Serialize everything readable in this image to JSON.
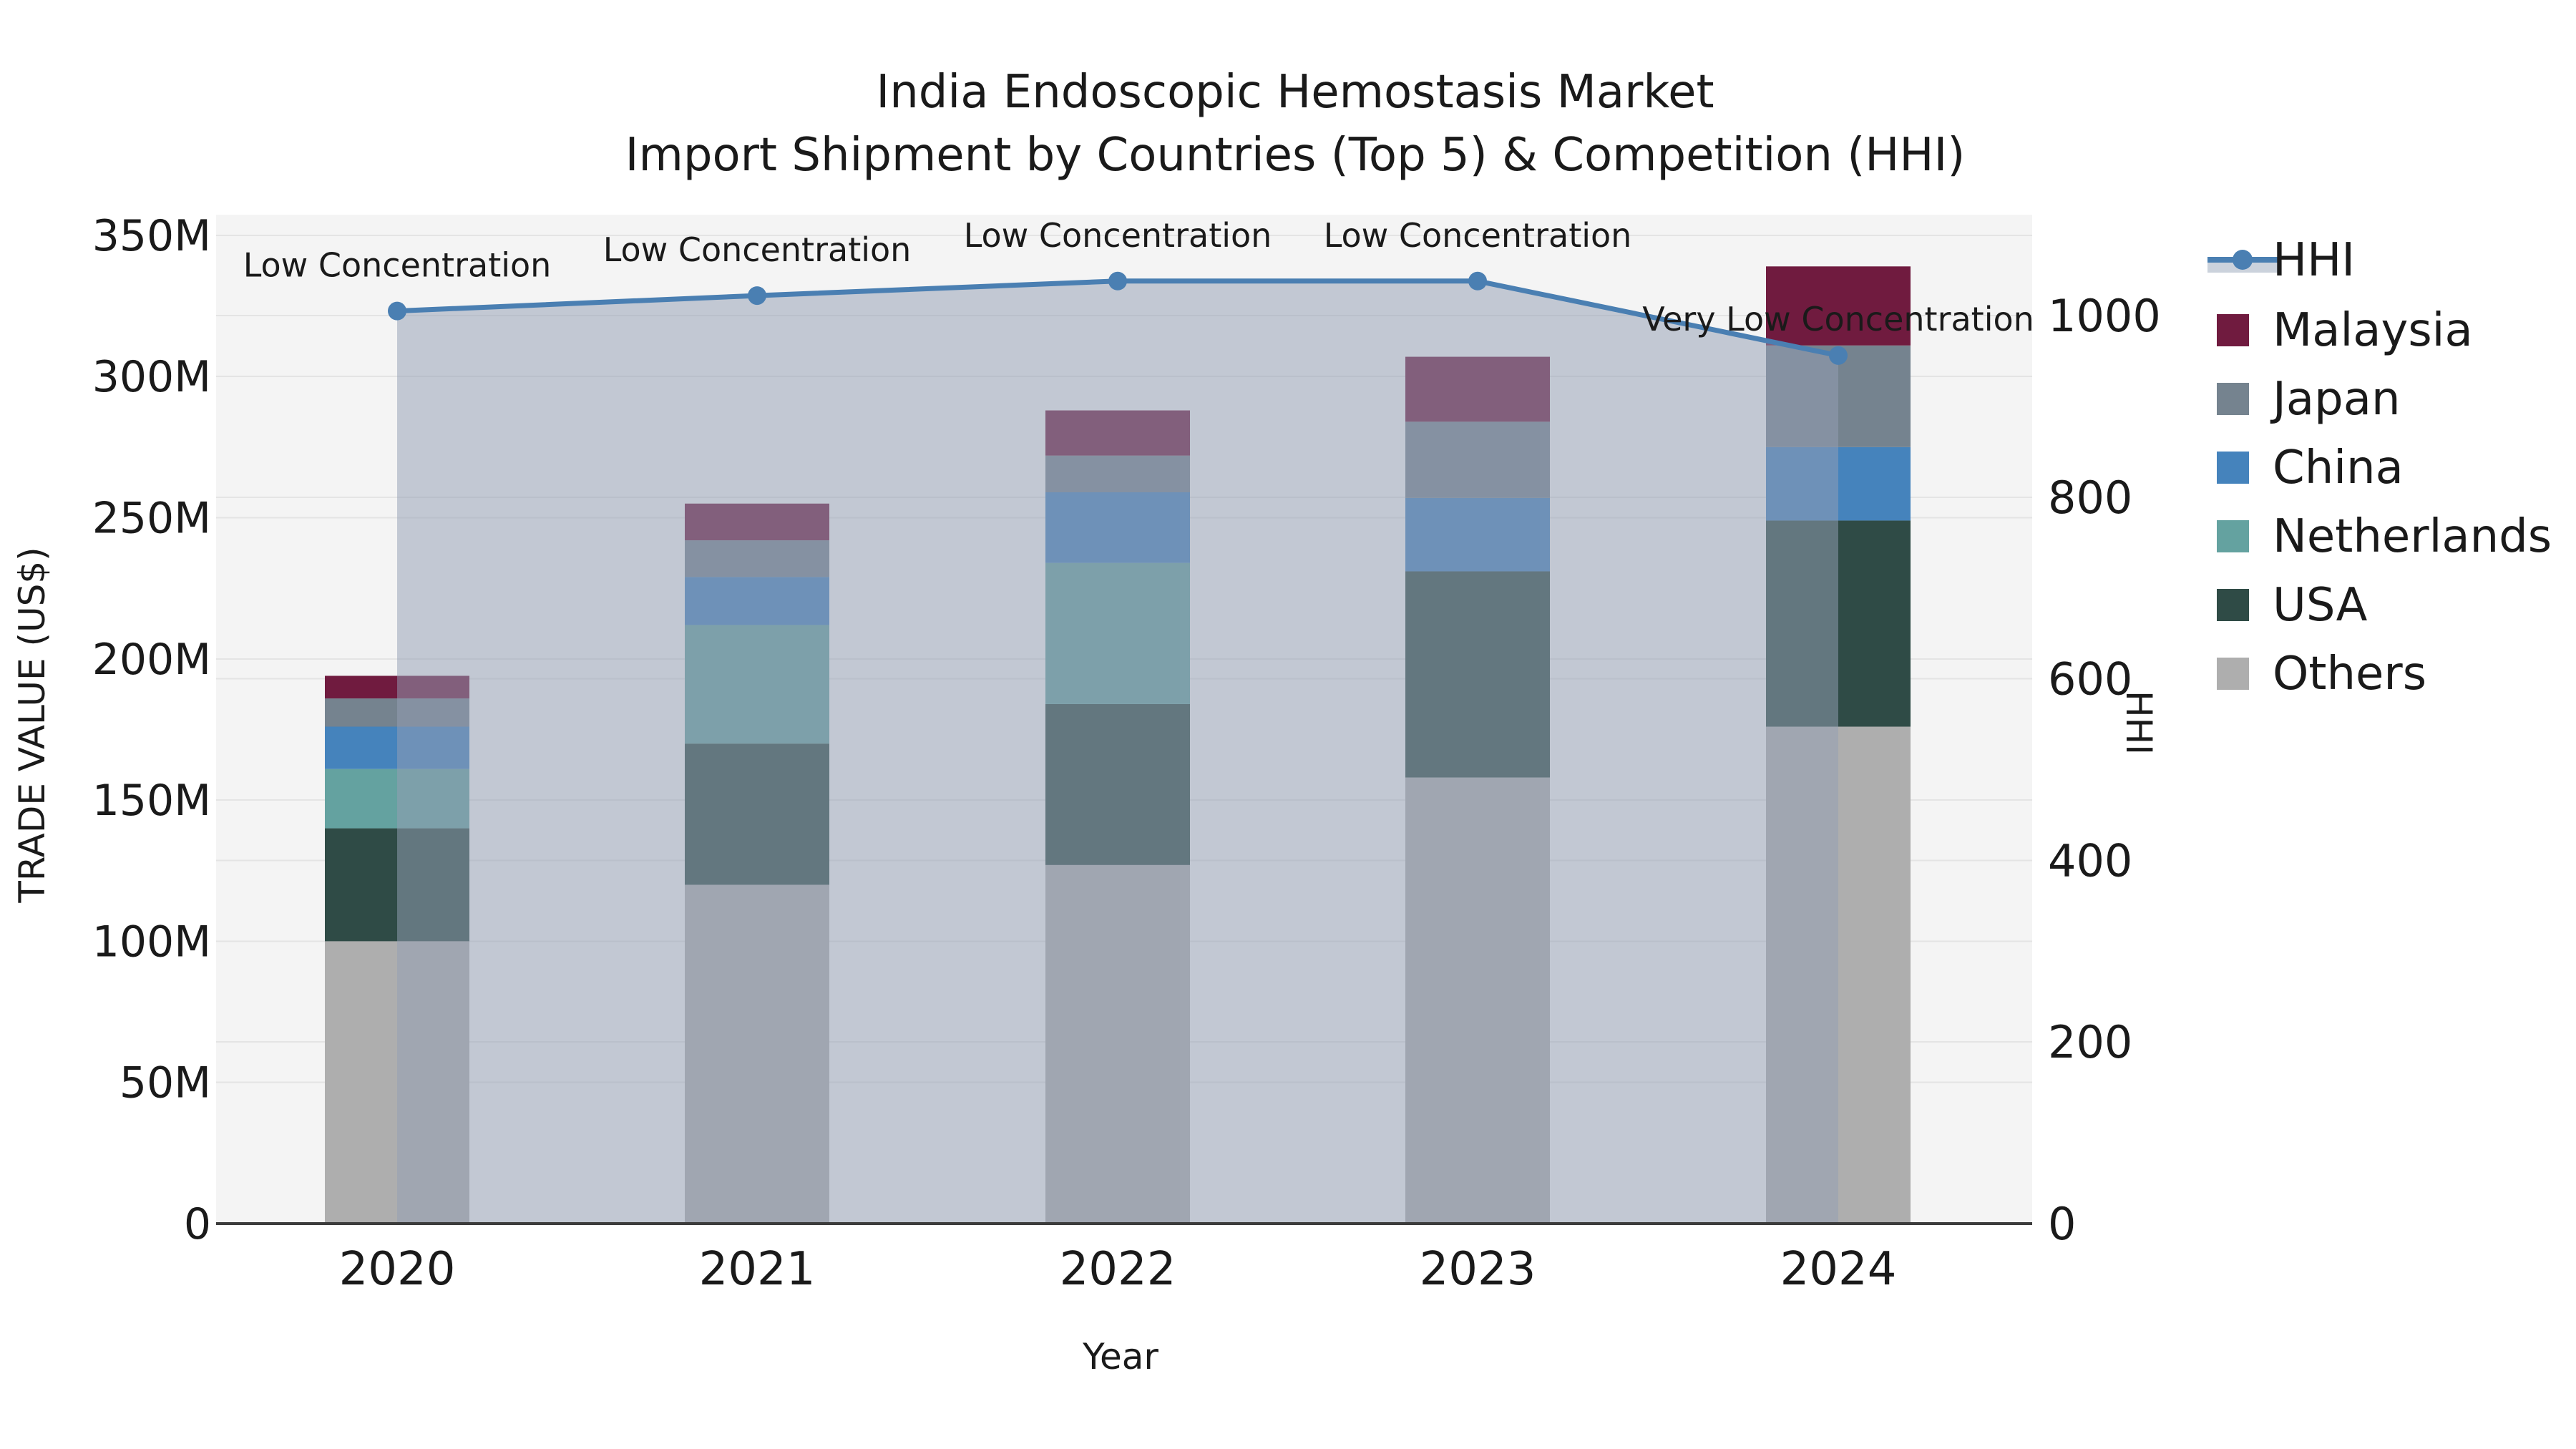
{
  "title": {
    "line1": "India Endoscopic Hemostasis Market",
    "line2": "Import Shipment by Countries (Top 5) & Competition (HHI)"
  },
  "axes": {
    "x_label": "Year",
    "y_left_label": "TRADE VALUE (US$)",
    "y_right_label": "HHI",
    "y_left_ticks": [
      {
        "label": "0",
        "value": 0
      },
      {
        "label": "50M",
        "value": 50
      },
      {
        "label": "100M",
        "value": 100
      },
      {
        "label": "150M",
        "value": 150
      },
      {
        "label": "200M",
        "value": 200
      },
      {
        "label": "250M",
        "value": 250
      },
      {
        "label": "300M",
        "value": 300
      },
      {
        "label": "350M",
        "value": 350
      }
    ],
    "y_right_ticks": [
      {
        "label": "0",
        "value": 0
      },
      {
        "label": "200",
        "value": 200
      },
      {
        "label": "400",
        "value": 400
      },
      {
        "label": "600",
        "value": 600
      },
      {
        "label": "800",
        "value": 800
      },
      {
        "label": "1000",
        "value": 1000
      }
    ]
  },
  "legend": [
    {
      "label": "HHI",
      "type": "line",
      "color": "#4A7FB2",
      "band_color": "#CBD2DC"
    },
    {
      "label": "Malaysia",
      "type": "swatch",
      "color": "#701B3F"
    },
    {
      "label": "Japan",
      "type": "swatch",
      "color": "#75838F"
    },
    {
      "label": "China",
      "type": "swatch",
      "color": "#4583BC"
    },
    {
      "label": "Netherlands",
      "type": "swatch",
      "color": "#64A2A0"
    },
    {
      "label": "USA",
      "type": "swatch",
      "color": "#2F4B46"
    },
    {
      "label": "Others",
      "type": "swatch",
      "color": "#AEAEAE"
    }
  ],
  "chart_data": {
    "type": "bar+line",
    "title": "India Endoscopic Hemostasis Market — Import Shipment by Countries (Top 5) & Competition (HHI)",
    "xlabel": "Year",
    "ylabel_left": "TRADE VALUE (US$)",
    "ylabel_right": "HHI",
    "categories": [
      "2020",
      "2021",
      "2022",
      "2023",
      "2024"
    ],
    "values_unit": "USD millions",
    "stack_order_bottom_to_top": [
      "Others",
      "USA",
      "Netherlands",
      "China",
      "Japan",
      "Malaysia"
    ],
    "series": [
      {
        "name": "Others",
        "color": "#AEAEAE",
        "values": [
          100,
          120,
          127,
          158,
          176
        ]
      },
      {
        "name": "USA",
        "color": "#2F4B46",
        "values": [
          40,
          50,
          57,
          73,
          73
        ]
      },
      {
        "name": "Netherlands",
        "color": "#64A2A0",
        "values": [
          21,
          42,
          50,
          0,
          0
        ]
      },
      {
        "name": "China",
        "color": "#4583BC",
        "values": [
          15,
          17,
          25,
          26,
          26
        ]
      },
      {
        "name": "Japan",
        "color": "#75838F",
        "values": [
          10,
          13,
          13,
          27,
          36
        ]
      },
      {
        "name": "Malaysia",
        "color": "#701B3F",
        "values": [
          8,
          13,
          16,
          23,
          28
        ]
      }
    ],
    "bar_totals": [
      194,
      255,
      288,
      307,
      339
    ],
    "line_series": {
      "name": "HHI",
      "color": "#4A7FB2",
      "area_fill": "rgba(148,160,181,0.52)",
      "values": [
        1005,
        1022,
        1038,
        1038,
        956
      ]
    },
    "annotations": [
      {
        "category": "2020",
        "text": "Low Concentration"
      },
      {
        "category": "2021",
        "text": "Low Concentration"
      },
      {
        "category": "2022",
        "text": "Low Concentration"
      },
      {
        "category": "2023",
        "text": "Low Concentration"
      },
      {
        "category": "2024",
        "text": "Very Low Concentration"
      }
    ],
    "ylim_left_millions": [
      0,
      357
    ],
    "ylim_right": [
      0,
      1125
    ],
    "grid": true,
    "legend_position": "right",
    "plot_bg_color": "#f4f4f4",
    "grid_color": "#e4e4e4"
  }
}
